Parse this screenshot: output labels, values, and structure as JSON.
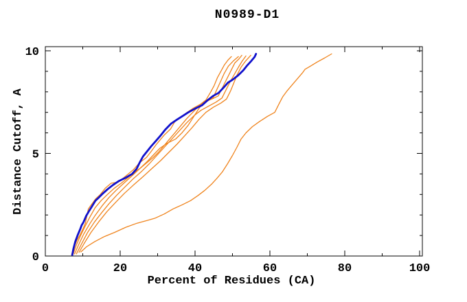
{
  "window": {
    "background": "#ffffff"
  },
  "chart_data": {
    "type": "line",
    "title": "N0989-D1",
    "xlabel": "Percent of Residues (CA)",
    "ylabel": "Distance Cutoff, A",
    "xlim": [
      0,
      100.7
    ],
    "ylim": [
      0,
      10.2
    ],
    "grid": false,
    "legend": "none",
    "xticks_major": [
      0,
      20,
      40,
      60,
      80,
      100
    ],
    "xticks_minor": [
      10,
      30,
      50,
      70,
      90
    ],
    "yticks_major": [
      0,
      5,
      10
    ],
    "yticks_minor": [
      1,
      2,
      3,
      4,
      6,
      7,
      8,
      9
    ],
    "xtick_labels": [
      "0",
      "20",
      "40",
      "60",
      "80",
      "100"
    ],
    "ytick_labels": [
      "0",
      "5",
      "10"
    ],
    "colors": {
      "axis": "#000000",
      "highlight": "#1111cc",
      "others": "#ef831c"
    },
    "series": [
      {
        "name": "orange-model-1",
        "color_role": "others",
        "width": 1.3,
        "points": [
          [
            7.0,
            0.05
          ],
          [
            7.6,
            0.4
          ],
          [
            8.4,
            0.75
          ],
          [
            9.2,
            1.0
          ],
          [
            10.0,
            1.3
          ],
          [
            10.7,
            1.6
          ],
          [
            11.5,
            2.3
          ],
          [
            12.3,
            2.5
          ],
          [
            13.5,
            2.8
          ],
          [
            14.7,
            3.0
          ],
          [
            16.0,
            3.3
          ],
          [
            17.6,
            3.55
          ],
          [
            19.5,
            3.6
          ],
          [
            21.5,
            3.9
          ],
          [
            23.5,
            4.2
          ],
          [
            25.2,
            4.55
          ],
          [
            27.0,
            4.8
          ],
          [
            28.3,
            5.1
          ],
          [
            29.5,
            5.4
          ],
          [
            30.4,
            5.6
          ],
          [
            31.8,
            5.9
          ],
          [
            33.5,
            6.2
          ],
          [
            34.6,
            6.55
          ],
          [
            36.2,
            6.75
          ],
          [
            37.5,
            6.95
          ],
          [
            39.5,
            7.2
          ],
          [
            41.5,
            7.4
          ],
          [
            42.9,
            7.6
          ],
          [
            44.2,
            8.0
          ],
          [
            45.1,
            8.3
          ],
          [
            46.0,
            8.7
          ],
          [
            46.9,
            9.0
          ],
          [
            47.8,
            9.3
          ],
          [
            48.8,
            9.55
          ],
          [
            49.7,
            9.72
          ]
        ]
      },
      {
        "name": "orange-model-2",
        "color_role": "others",
        "width": 1.3,
        "points": [
          [
            7.4,
            0.08
          ],
          [
            8.2,
            0.5
          ],
          [
            9.3,
            0.95
          ],
          [
            10.5,
            1.4
          ],
          [
            11.9,
            1.9
          ],
          [
            13.3,
            2.35
          ],
          [
            14.9,
            2.7
          ],
          [
            16.6,
            3.0
          ],
          [
            18.4,
            3.3
          ],
          [
            20.3,
            3.55
          ],
          [
            22.3,
            3.85
          ],
          [
            24.0,
            4.1
          ],
          [
            25.5,
            4.3
          ],
          [
            26.8,
            4.5
          ],
          [
            28.8,
            4.8
          ],
          [
            30.2,
            5.05
          ],
          [
            31.6,
            5.35
          ],
          [
            33.2,
            5.7
          ],
          [
            34.6,
            6.0
          ],
          [
            36.2,
            6.35
          ],
          [
            37.8,
            6.7
          ],
          [
            39.4,
            7.0
          ],
          [
            41.0,
            7.3
          ],
          [
            42.8,
            7.5
          ],
          [
            44.8,
            7.7
          ],
          [
            45.8,
            8.1
          ],
          [
            46.8,
            8.5
          ],
          [
            47.8,
            8.9
          ],
          [
            48.9,
            9.25
          ],
          [
            50.2,
            9.5
          ],
          [
            51.6,
            9.72
          ]
        ]
      },
      {
        "name": "orange-model-3",
        "color_role": "others",
        "width": 1.3,
        "points": [
          [
            7.8,
            0.1
          ],
          [
            8.9,
            0.55
          ],
          [
            10.2,
            1.05
          ],
          [
            11.8,
            1.55
          ],
          [
            13.4,
            2.0
          ],
          [
            15.2,
            2.45
          ],
          [
            17.0,
            2.85
          ],
          [
            18.9,
            3.2
          ],
          [
            21.0,
            3.55
          ],
          [
            23.1,
            3.9
          ],
          [
            25.2,
            4.25
          ],
          [
            27.2,
            4.6
          ],
          [
            29.0,
            4.95
          ],
          [
            30.6,
            5.25
          ],
          [
            32.6,
            5.5
          ],
          [
            34.8,
            5.7
          ],
          [
            36.5,
            6.0
          ],
          [
            38.1,
            6.35
          ],
          [
            39.5,
            6.75
          ],
          [
            40.9,
            7.15
          ],
          [
            42.3,
            7.5
          ],
          [
            44.5,
            7.65
          ],
          [
            46.2,
            7.8
          ],
          [
            47.3,
            8.2
          ],
          [
            48.4,
            8.6
          ],
          [
            49.5,
            9.0
          ],
          [
            50.6,
            9.4
          ],
          [
            51.7,
            9.6
          ],
          [
            52.5,
            9.78
          ]
        ]
      },
      {
        "name": "orange-model-4",
        "color_role": "others",
        "width": 1.3,
        "points": [
          [
            8.3,
            0.1
          ],
          [
            9.7,
            0.6
          ],
          [
            11.3,
            1.15
          ],
          [
            13.1,
            1.65
          ],
          [
            15.0,
            2.1
          ],
          [
            17.0,
            2.55
          ],
          [
            19.0,
            2.95
          ],
          [
            21.2,
            3.35
          ],
          [
            23.4,
            3.75
          ],
          [
            25.6,
            4.1
          ],
          [
            27.8,
            4.5
          ],
          [
            29.8,
            4.9
          ],
          [
            31.8,
            5.3
          ],
          [
            33.8,
            5.7
          ],
          [
            35.8,
            6.1
          ],
          [
            37.8,
            6.5
          ],
          [
            39.8,
            6.85
          ],
          [
            41.6,
            7.1
          ],
          [
            43.6,
            7.3
          ],
          [
            45.6,
            7.5
          ],
          [
            47.2,
            7.7
          ],
          [
            48.3,
            8.1
          ],
          [
            49.4,
            8.5
          ],
          [
            50.5,
            8.85
          ],
          [
            51.6,
            9.2
          ],
          [
            52.6,
            9.5
          ],
          [
            53.6,
            9.75
          ]
        ]
      },
      {
        "name": "orange-model-5",
        "color_role": "others",
        "width": 1.3,
        "points": [
          [
            9.0,
            0.18
          ],
          [
            10.5,
            0.65
          ],
          [
            12.2,
            1.15
          ],
          [
            14.2,
            1.65
          ],
          [
            16.4,
            2.15
          ],
          [
            18.7,
            2.6
          ],
          [
            21.1,
            3.05
          ],
          [
            23.5,
            3.45
          ],
          [
            26.0,
            3.85
          ],
          [
            28.4,
            4.25
          ],
          [
            30.8,
            4.65
          ],
          [
            33.0,
            5.05
          ],
          [
            35.2,
            5.45
          ],
          [
            37.2,
            5.85
          ],
          [
            39.2,
            6.25
          ],
          [
            41.0,
            6.65
          ],
          [
            42.9,
            7.0
          ],
          [
            44.9,
            7.25
          ],
          [
            46.9,
            7.45
          ],
          [
            48.4,
            7.65
          ],
          [
            49.5,
            8.05
          ],
          [
            50.4,
            8.45
          ],
          [
            51.3,
            8.85
          ],
          [
            52.3,
            9.2
          ],
          [
            53.5,
            9.5
          ],
          [
            54.9,
            9.78
          ]
        ]
      },
      {
        "name": "orange-model-outlier",
        "color_role": "others",
        "width": 1.3,
        "points": [
          [
            9.5,
            0.2
          ],
          [
            11.0,
            0.45
          ],
          [
            13.2,
            0.7
          ],
          [
            15.8,
            0.95
          ],
          [
            18.5,
            1.15
          ],
          [
            21.5,
            1.4
          ],
          [
            24.5,
            1.6
          ],
          [
            27.5,
            1.75
          ],
          [
            29.4,
            1.85
          ],
          [
            31.8,
            2.05
          ],
          [
            34.2,
            2.3
          ],
          [
            36.6,
            2.5
          ],
          [
            38.8,
            2.7
          ],
          [
            40.8,
            2.95
          ],
          [
            42.6,
            3.2
          ],
          [
            44.4,
            3.5
          ],
          [
            45.9,
            3.8
          ],
          [
            47.3,
            4.1
          ],
          [
            48.7,
            4.5
          ],
          [
            50.0,
            4.9
          ],
          [
            51.2,
            5.3
          ],
          [
            52.3,
            5.7
          ],
          [
            53.6,
            6.0
          ],
          [
            55.3,
            6.3
          ],
          [
            57.2,
            6.55
          ],
          [
            59.3,
            6.8
          ],
          [
            61.3,
            7.0
          ],
          [
            62.4,
            7.4
          ],
          [
            63.4,
            7.75
          ],
          [
            64.6,
            8.05
          ],
          [
            66.0,
            8.35
          ],
          [
            67.4,
            8.65
          ],
          [
            68.8,
            8.95
          ],
          [
            69.4,
            9.1
          ],
          [
            70.8,
            9.25
          ],
          [
            72.6,
            9.45
          ],
          [
            74.6,
            9.65
          ],
          [
            76.5,
            9.85
          ]
        ]
      },
      {
        "name": "blue-highlighted-model",
        "color_role": "highlight",
        "width": 2.8,
        "points": [
          [
            7.2,
            0.05
          ],
          [
            7.5,
            0.35
          ],
          [
            8.0,
            0.7
          ],
          [
            8.6,
            1.0
          ],
          [
            9.3,
            1.3
          ],
          [
            9.7,
            1.5
          ],
          [
            10.2,
            1.65
          ],
          [
            10.9,
            1.95
          ],
          [
            11.7,
            2.2
          ],
          [
            12.4,
            2.4
          ],
          [
            13.4,
            2.7
          ],
          [
            14.3,
            2.85
          ],
          [
            15.4,
            3.05
          ],
          [
            16.6,
            3.25
          ],
          [
            18.0,
            3.45
          ],
          [
            19.6,
            3.65
          ],
          [
            21.3,
            3.8
          ],
          [
            23.2,
            4.0
          ],
          [
            24.4,
            4.25
          ],
          [
            25.2,
            4.55
          ],
          [
            26.1,
            4.85
          ],
          [
            27.2,
            5.1
          ],
          [
            28.3,
            5.35
          ],
          [
            29.5,
            5.6
          ],
          [
            30.7,
            5.85
          ],
          [
            32.0,
            6.15
          ],
          [
            33.6,
            6.45
          ],
          [
            35.2,
            6.65
          ],
          [
            36.5,
            6.8
          ],
          [
            38.2,
            7.0
          ],
          [
            40.2,
            7.2
          ],
          [
            41.9,
            7.35
          ],
          [
            43.4,
            7.6
          ],
          [
            44.8,
            7.8
          ],
          [
            46.3,
            7.95
          ],
          [
            47.6,
            8.2
          ],
          [
            48.8,
            8.45
          ],
          [
            50.1,
            8.6
          ],
          [
            51.5,
            8.8
          ],
          [
            52.9,
            9.05
          ],
          [
            54.0,
            9.3
          ],
          [
            55.0,
            9.5
          ],
          [
            55.9,
            9.7
          ],
          [
            56.3,
            9.85
          ]
        ]
      }
    ]
  }
}
